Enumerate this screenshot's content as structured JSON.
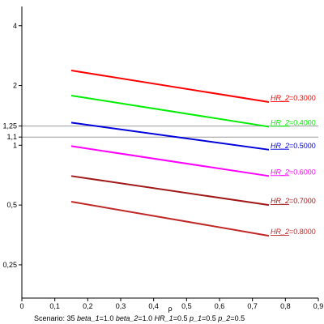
{
  "chart_data": {
    "type": "line",
    "xlabel": "ρ",
    "xlim": [
      0,
      0.9
    ],
    "ylim": [
      0.17,
      5.0
    ],
    "yscale": "log",
    "x_ticks": [
      {
        "value": 0,
        "label": "0"
      },
      {
        "value": 0.1,
        "label": "0,1"
      },
      {
        "value": 0.2,
        "label": "0,2"
      },
      {
        "value": 0.3,
        "label": "0,3"
      },
      {
        "value": 0.4,
        "label": "0,4"
      },
      {
        "value": 0.5,
        "label": "0,5"
      },
      {
        "value": 0.6,
        "label": "0,6"
      },
      {
        "value": 0.7,
        "label": "0,7"
      },
      {
        "value": 0.8,
        "label": "0,8"
      },
      {
        "value": 0.9,
        "label": "0,9"
      }
    ],
    "y_ticks": [
      {
        "value": 0.25,
        "label": "0,25"
      },
      {
        "value": 0.5,
        "label": "0,5"
      },
      {
        "value": 1,
        "label": "1"
      },
      {
        "value": 1.1,
        "label": "1,1"
      },
      {
        "value": 1.25,
        "label": "1,25"
      },
      {
        "value": 2,
        "label": "2"
      },
      {
        "value": 4,
        "label": "4"
      }
    ],
    "reference_lines": [
      1.1,
      1.25
    ],
    "series": [
      {
        "name_prefix": "HR_2",
        "name_value": "=0.3000",
        "color": "#ff0000",
        "x": [
          0.15,
          0.75
        ],
        "y": [
          2.38,
          1.65
        ]
      },
      {
        "name_prefix": "HR_2",
        "name_value": "=0.4000",
        "color": "#00ee00",
        "x": [
          0.15,
          0.75
        ],
        "y": [
          1.78,
          1.24
        ]
      },
      {
        "name_prefix": "HR_2",
        "name_value": "=0.5000",
        "color": "#0000dd",
        "x": [
          0.15,
          0.75
        ],
        "y": [
          1.3,
          0.95
        ]
      },
      {
        "name_prefix": "HR_2",
        "name_value": "=0.6000",
        "color": "#ff00ff",
        "x": [
          0.15,
          0.75
        ],
        "y": [
          0.99,
          0.7
        ]
      },
      {
        "name_prefix": "HR_2",
        "name_value": "=0.7000",
        "color": "#a01818",
        "x": [
          0.15,
          0.75
        ],
        "y": [
          0.7,
          0.5
        ]
      },
      {
        "name_prefix": "HR_2",
        "name_value": "=0.8000",
        "color": "#c02828",
        "x": [
          0.15,
          0.75
        ],
        "y": [
          0.52,
          0.35
        ]
      }
    ],
    "caption": {
      "scenario": "Scenario: 35",
      "params": [
        {
          "name": "beta_1",
          "value": "=1.0"
        },
        {
          "name": "beta_2",
          "value": "=1.0"
        },
        {
          "name": "HR_1",
          "value": "=0.5"
        },
        {
          "name": "p_1",
          "value": "=0.5"
        },
        {
          "name": "p_2",
          "value": "=0.5"
        }
      ]
    }
  }
}
